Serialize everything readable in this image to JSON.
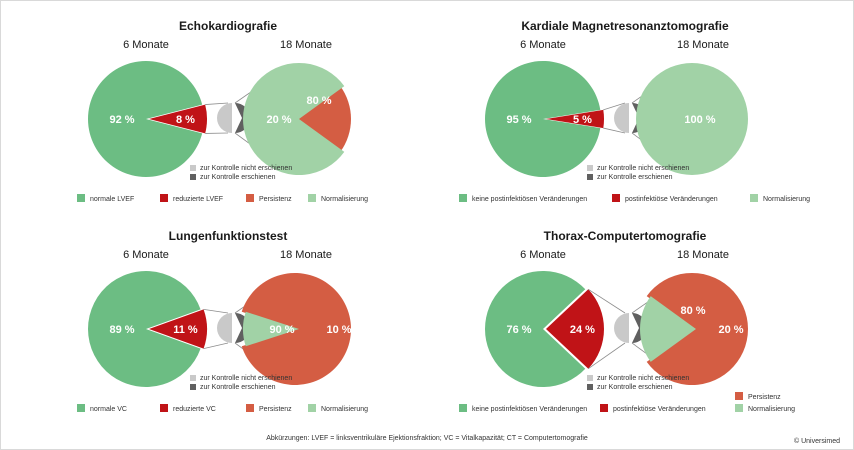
{
  "footer": {
    "abbreviations": "Abkürzungen: LVEF = linksventrikuläre Ejektionsfraktion; VC = Vitalkapazität; CT = Computertomografie",
    "copyright": "© Universimed"
  },
  "colors": {
    "green": "#6cbd83",
    "red": "#c01317",
    "orange": "#d45d43",
    "light_green": "#a1d2a6",
    "light_gray": "#c9c9c9",
    "dark_gray": "#606060",
    "connector": "#8c8c8c"
  },
  "chart_data": [
    {
      "type": "pie",
      "title": "Echokardiografie",
      "left_label": "6 Monate",
      "right_label": "18 Monate",
      "left_pie": {
        "values": [
          92,
          8
        ],
        "labels": [
          "92 %",
          "8 %"
        ]
      },
      "right_pie": {
        "values": [
          20,
          80
        ],
        "labels": [
          "20 %",
          "80 %"
        ]
      },
      "followup": [
        "zur Kontrolle nicht erschienen",
        "zur Kontrolle erschienen"
      ],
      "legend": [
        "normale LVEF",
        "reduzierte  LVEF",
        "Persistenz",
        "Normalisierung"
      ]
    },
    {
      "type": "pie",
      "title": "Kardiale Magnetresonanztomografie",
      "left_label": "6 Monate",
      "right_label": "18 Monate",
      "left_pie": {
        "values": [
          95,
          5
        ],
        "labels": [
          "95 %",
          "5 %"
        ]
      },
      "right_pie": {
        "values": [
          0,
          100
        ],
        "labels": [
          "",
          "100 %"
        ]
      },
      "followup": [
        "zur Kontrolle nicht erschienen",
        "zur Kontrolle erschienen"
      ],
      "legend": [
        "keine postinfektiösen Veränderungen",
        "postinfektiöse Veränderungen",
        "Normalisierung"
      ]
    },
    {
      "type": "pie",
      "title": "Lungenfunktionstest",
      "left_label": "6 Monate",
      "right_label": "18 Monate",
      "left_pie": {
        "values": [
          89,
          11
        ],
        "labels": [
          "89 %",
          "11 %"
        ]
      },
      "right_pie": {
        "values": [
          90,
          10
        ],
        "labels": [
          "90 %",
          "10 %"
        ]
      },
      "followup": [
        "zur Kontrolle nicht erschienen",
        "zur Kontrolle erschienen"
      ],
      "legend": [
        "normale VC",
        "reduzierte  VC",
        "Persistenz",
        "Normalisierung"
      ]
    },
    {
      "type": "pie",
      "title": "Thorax-Computertomografie",
      "left_label": "6 Monate",
      "right_label": "18 Monate",
      "left_pie": {
        "values": [
          76,
          24
        ],
        "labels": [
          "76 %",
          "24 %"
        ]
      },
      "right_pie": {
        "values": [
          80,
          20
        ],
        "labels": [
          "80 %",
          "20 %"
        ]
      },
      "followup": [
        "zur Kontrolle nicht erschienen",
        "zur Kontrolle erschienen"
      ],
      "legend": [
        "Persistenz",
        "keine postinfektiösen Veränderungen",
        "postinfektiöse Veränderungen",
        "Normalisierung"
      ]
    }
  ]
}
